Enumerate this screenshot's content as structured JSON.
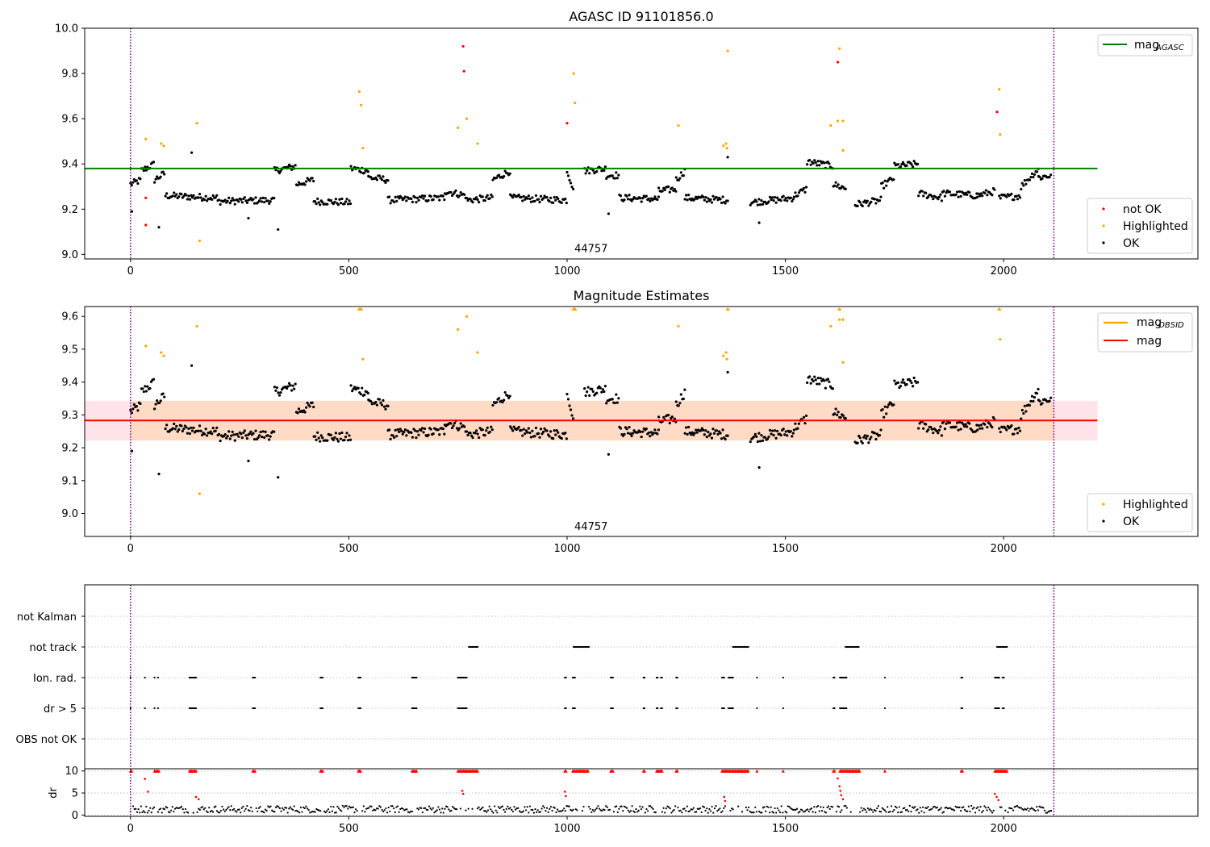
{
  "colors": {
    "ok": "#000000",
    "highlighted": "#ffa500",
    "not_ok": "#ff0000",
    "agasc_line": "#008000",
    "mag_line": "#ff0000",
    "obsid_line": "#ffa500",
    "band_fill": "#ffc0cb",
    "band_overlay": "#ffd7b8",
    "obs_boundary": "#800080",
    "dr_marker": "#ff0000"
  },
  "chart_data": [
    {
      "type": "scatter",
      "title": "AGASC ID 91101856.0",
      "xlabel": "",
      "ylabel": "",
      "xlim": [
        -105,
        2445
      ],
      "ylim": [
        8.98,
        10.0
      ],
      "xticks": [
        "0",
        "500",
        "1000",
        "1500",
        "2000"
      ],
      "yticks": [
        "9.0",
        "9.2",
        "9.4",
        "9.6",
        "9.8",
        "10.0"
      ],
      "annotation": {
        "text": "44757",
        "x": 1055,
        "y": 9.01
      },
      "obs_boundaries": [
        0,
        2115
      ],
      "reference_line": {
        "name": "mag",
        "subscript": "AGASC",
        "value": 9.38,
        "x_range": [
          -105,
          2215
        ]
      },
      "legend_top": [
        {
          "name": "mag",
          "subscript": "AGASC"
        }
      ],
      "legend_bottom": [
        "not OK",
        "Highlighted",
        "OK"
      ],
      "series": [
        {
          "name": "not OK",
          "points": [
            [
              35,
              9.25
            ],
            [
              35,
              9.13
            ],
            [
              762,
              9.92
            ],
            [
              764,
              9.81
            ],
            [
              1000,
              9.58
            ],
            [
              1620,
              9.85
            ],
            [
              1985,
              9.63
            ]
          ]
        },
        {
          "name": "Highlighted",
          "points": [
            [
              35,
              9.51
            ],
            [
              70,
              9.49
            ],
            [
              76,
              9.48
            ],
            [
              152,
              9.58
            ],
            [
              158,
              9.06
            ],
            [
              524,
              9.72
            ],
            [
              528,
              9.66
            ],
            [
              532,
              9.47
            ],
            [
              750,
              9.56
            ],
            [
              770,
              9.6
            ],
            [
              795,
              9.49
            ],
            [
              1015,
              9.8
            ],
            [
              1018,
              9.67
            ],
            [
              1255,
              9.57
            ],
            [
              1358,
              9.48
            ],
            [
              1364,
              9.49
            ],
            [
              1366,
              9.47
            ],
            [
              1368,
              9.9
            ],
            [
              1604,
              9.57
            ],
            [
              1620,
              9.59
            ],
            [
              1624,
              9.91
            ],
            [
              1632,
              9.59
            ],
            [
              1632,
              9.46
            ],
            [
              1990,
              9.73
            ],
            [
              1992,
              9.53
            ]
          ]
        }
      ],
      "ok_outliers": [
        [
          3,
          9.19
        ],
        [
          65,
          9.12
        ],
        [
          140,
          9.45
        ],
        [
          270,
          9.16
        ],
        [
          338,
          9.11
        ],
        [
          1095,
          9.18
        ],
        [
          1368,
          9.43
        ],
        [
          1440,
          9.14
        ]
      ]
    },
    {
      "type": "scatter",
      "title": "Magnitude Estimates",
      "xlabel": "",
      "ylabel": "",
      "xlim": [
        -105,
        2445
      ],
      "ylim": [
        8.93,
        9.63
      ],
      "xticks": [
        "0",
        "500",
        "1000",
        "1500",
        "2000"
      ],
      "yticks": [
        "9.0",
        "9.1",
        "9.2",
        "9.3",
        "9.4",
        "9.5",
        "9.6"
      ],
      "annotation": {
        "text": "44757",
        "x": 1055,
        "y": 8.95
      },
      "obs_boundaries": [
        0,
        2115
      ],
      "mean_line": {
        "name": "mag",
        "value": 9.283,
        "x_range": [
          -105,
          2215
        ]
      },
      "band": {
        "low": 9.222,
        "high": 9.343,
        "x_range": [
          -105,
          2215
        ]
      },
      "obsid_band": {
        "x_range": [
          0,
          2115
        ]
      },
      "legend_top": [
        {
          "name": "mag",
          "subscript": "OBSID"
        },
        {
          "name": "mag",
          "subscript": ""
        }
      ],
      "legend_bottom": [
        "Highlighted",
        "OK"
      ],
      "series": [
        {
          "name": "Highlighted",
          "points": [
            [
              35,
              9.51
            ],
            [
              70,
              9.49
            ],
            [
              76,
              9.48
            ],
            [
              158,
              9.06
            ],
            [
              152,
              9.57
            ],
            [
              532,
              9.47
            ],
            [
              750,
              9.56
            ],
            [
              770,
              9.6
            ],
            [
              795,
              9.49
            ],
            [
              1255,
              9.57
            ],
            [
              1358,
              9.48
            ],
            [
              1364,
              9.49
            ],
            [
              1366,
              9.47
            ],
            [
              1604,
              9.57
            ],
            [
              1624,
              9.59
            ],
            [
              1632,
              9.59
            ],
            [
              1632,
              9.46
            ],
            [
              1992,
              9.53
            ],
            [
              524,
              9.625
            ],
            [
              528,
              9.625
            ],
            [
              1015,
              9.625
            ],
            [
              1018,
              9.625
            ],
            [
              1368,
              9.625
            ],
            [
              1624,
              9.625
            ],
            [
              1990,
              9.625
            ]
          ]
        }
      ],
      "ok_outliers": [
        [
          3,
          9.19
        ],
        [
          65,
          9.12
        ],
        [
          140,
          9.45
        ],
        [
          270,
          9.16
        ],
        [
          338,
          9.11
        ],
        [
          1095,
          9.18
        ],
        [
          1368,
          9.43
        ],
        [
          1440,
          9.14
        ]
      ]
    },
    {
      "type": "scatter",
      "title": "",
      "xlabel": "",
      "ylabel": "",
      "xlim": [
        -105,
        2445
      ],
      "categories": [
        "not Kalman",
        "not track",
        "Ion. rad.",
        "dr > 5",
        "OBS not OK"
      ],
      "obs_boundaries": [
        0,
        2115
      ],
      "flag_ranges": {
        "not track": [
          [
            775,
            795
          ],
          [
            1015,
            1050
          ],
          [
            1380,
            1415
          ],
          [
            1638,
            1670
          ],
          [
            1985,
            2008
          ]
        ],
        "Ion. rad.": [
          [
            0,
            2
          ],
          [
            33,
            35
          ],
          [
            55,
            57
          ],
          [
            63,
            65
          ],
          [
            135,
            152
          ],
          [
            280,
            285
          ],
          [
            435,
            442
          ],
          [
            522,
            528
          ],
          [
            645,
            655
          ],
          [
            750,
            770
          ],
          [
            995,
            998
          ],
          [
            1013,
            1018
          ],
          [
            1100,
            1105
          ],
          [
            1175,
            1178
          ],
          [
            1205,
            1208
          ],
          [
            1215,
            1218
          ],
          [
            1250,
            1253
          ],
          [
            1355,
            1360
          ],
          [
            1370,
            1380
          ],
          [
            1435,
            1437
          ],
          [
            1495,
            1497
          ],
          [
            1610,
            1614
          ],
          [
            1625,
            1640
          ],
          [
            1728,
            1730
          ],
          [
            1903,
            1906
          ],
          [
            1980,
            1990
          ],
          [
            1998,
            2002
          ]
        ],
        "dr > 5": [
          [
            0,
            2
          ],
          [
            33,
            35
          ],
          [
            55,
            57
          ],
          [
            63,
            65
          ],
          [
            135,
            152
          ],
          [
            280,
            285
          ],
          [
            435,
            442
          ],
          [
            522,
            528
          ],
          [
            645,
            655
          ],
          [
            750,
            770
          ],
          [
            995,
            998
          ],
          [
            1013,
            1018
          ],
          [
            1100,
            1105
          ],
          [
            1175,
            1178
          ],
          [
            1205,
            1208
          ],
          [
            1215,
            1218
          ],
          [
            1250,
            1253
          ],
          [
            1355,
            1360
          ],
          [
            1370,
            1380
          ],
          [
            1435,
            1437
          ],
          [
            1495,
            1497
          ],
          [
            1610,
            1614
          ],
          [
            1625,
            1640
          ],
          [
            1728,
            1730
          ],
          [
            1903,
            1906
          ],
          [
            1980,
            1990
          ],
          [
            1998,
            2002
          ]
        ]
      }
    },
    {
      "type": "scatter",
      "title": "",
      "xlabel": "",
      "ylabel": "dr",
      "xlim": [
        -105,
        2445
      ],
      "ylim": [
        -0.3,
        10.5
      ],
      "xticks": [
        "0",
        "500",
        "1000",
        "1500",
        "2000"
      ],
      "yticks": [
        "0",
        "5",
        "10"
      ],
      "obs_boundaries": [
        0,
        2115
      ],
      "capped_at": 10,
      "capped_ranges": [
        [
          0,
          3
        ],
        [
          55,
          65
        ],
        [
          135,
          152
        ],
        [
          280,
          285
        ],
        [
          435,
          442
        ],
        [
          522,
          528
        ],
        [
          645,
          655
        ],
        [
          750,
          795
        ],
        [
          995,
          998
        ],
        [
          1013,
          1050
        ],
        [
          1100,
          1105
        ],
        [
          1175,
          1178
        ],
        [
          1205,
          1218
        ],
        [
          1250,
          1253
        ],
        [
          1355,
          1415
        ],
        [
          1435,
          1437
        ],
        [
          1495,
          1497
        ],
        [
          1610,
          1614
        ],
        [
          1625,
          1670
        ],
        [
          1728,
          1730
        ],
        [
          1903,
          1906
        ],
        [
          1980,
          2008
        ]
      ],
      "red_points": [
        [
          33,
          8.2
        ],
        [
          40,
          5.3
        ],
        [
          150,
          4.1
        ],
        [
          156,
          3.6
        ],
        [
          760,
          5.5
        ],
        [
          762,
          4.8
        ],
        [
          995,
          5.3
        ],
        [
          997,
          4.3
        ],
        [
          1360,
          4.1
        ],
        [
          1362,
          3.2
        ],
        [
          1620,
          8.3
        ],
        [
          1624,
          6.5
        ],
        [
          1626,
          5.5
        ],
        [
          1628,
          4.5
        ],
        [
          1632,
          3.6
        ],
        [
          1980,
          4.8
        ],
        [
          1984,
          4.1
        ],
        [
          1988,
          3.4
        ]
      ]
    }
  ]
}
